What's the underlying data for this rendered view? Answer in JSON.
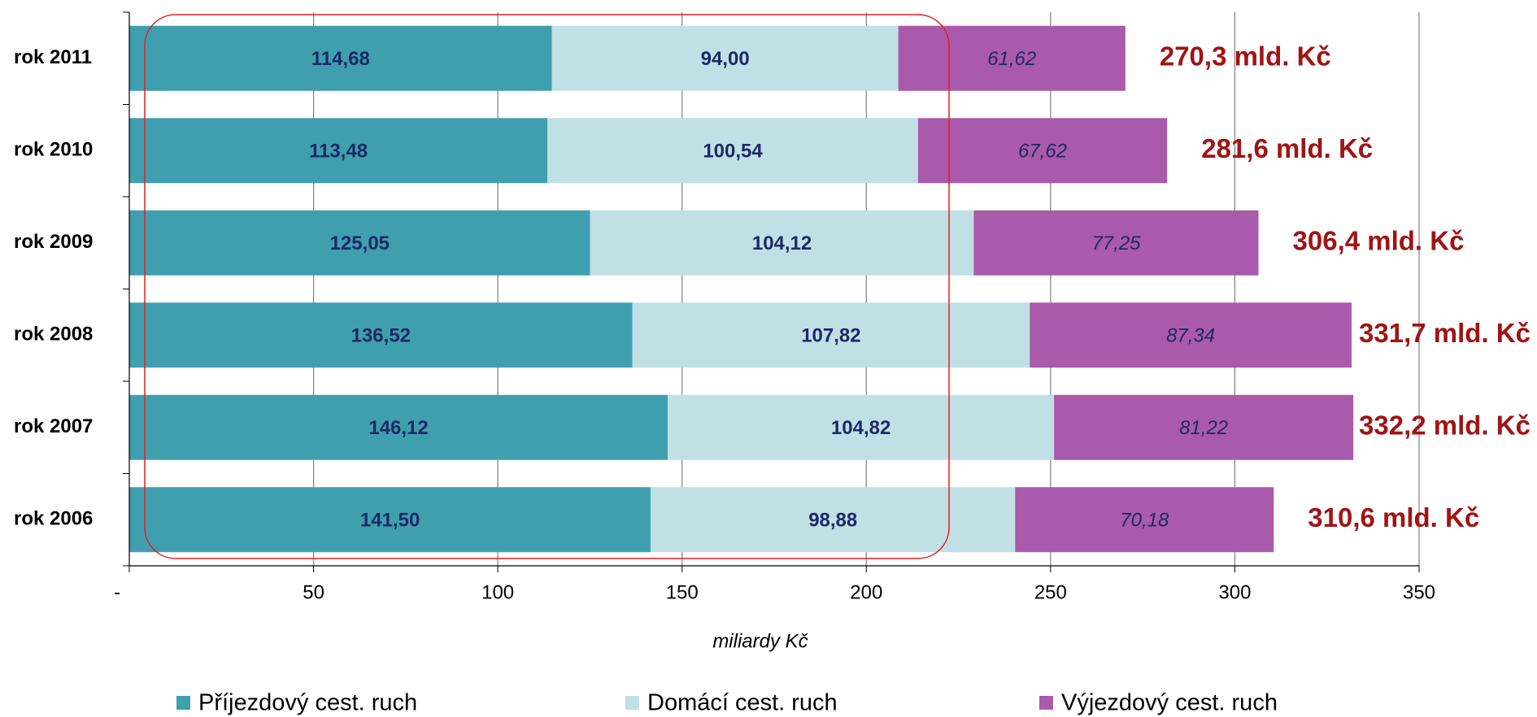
{
  "chart_data": {
    "type": "stacked-bar-horizontal",
    "categories": [
      "rok 2011",
      "rok 2010",
      "rok 2009",
      "rok 2008",
      "rok 2007",
      "rok 2006"
    ],
    "series": [
      {
        "name": "Příjezdový cest. ruch",
        "color": "#409fae",
        "values": [
          114.68,
          113.48,
          125.05,
          136.52,
          146.12,
          141.5
        ],
        "value_labels": [
          "114,68",
          "113,48",
          "125,05",
          "136,52",
          "146,12",
          "141,50"
        ]
      },
      {
        "name": "Domácí cest. ruch",
        "color": "#c0e0e6",
        "values": [
          94.0,
          100.54,
          104.12,
          107.82,
          104.82,
          98.88
        ],
        "value_labels": [
          "94,00",
          "100,54",
          "104,12",
          "107,82",
          "104,82",
          "98,88"
        ]
      },
      {
        "name": "Výjezdový cest. ruch",
        "color": "#aa5aaa",
        "values": [
          61.62,
          67.62,
          77.25,
          87.34,
          81.22,
          70.18
        ],
        "value_labels": [
          "61,62",
          "67,62",
          "77,25",
          "87,34",
          "81,22",
          "70,18"
        ]
      }
    ],
    "total_labels": [
      "270,3 mld. Kč",
      "281,6 mld. Kč",
      "306,4 mld. Kč",
      "331,7 mld. Kč",
      "332,2 mld. Kč",
      "310,6 mld. Kč"
    ],
    "xlabel": "miliardy Kč",
    "xlim": [
      0,
      350
    ],
    "xticks": [
      {
        "value": 0,
        "label": "-"
      },
      50,
      100,
      150,
      200,
      250,
      300,
      350
    ],
    "grid": true
  }
}
